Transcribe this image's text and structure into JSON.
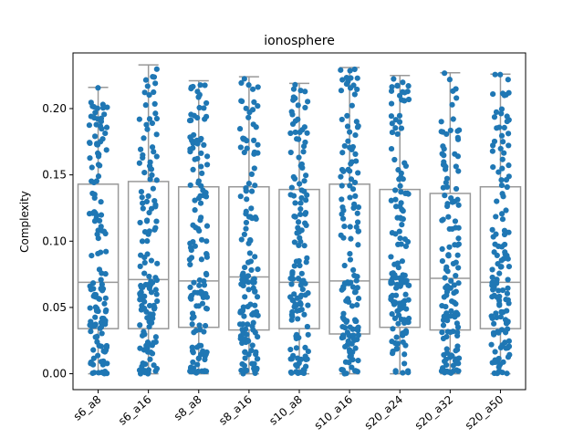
{
  "chart_data": {
    "type": "box",
    "title": "ionosphere",
    "xlabel": "",
    "ylabel": "Complexity",
    "ylim": [
      -0.012,
      0.242
    ],
    "yticks": [
      "0.00",
      "0.05",
      "0.10",
      "0.15",
      "0.20"
    ],
    "grid": false,
    "overlay": "strip",
    "point_color": "#1f77b4",
    "box_edge_color": "#999999",
    "categories": [
      "s6_a8",
      "s6_a16",
      "s8_a8",
      "s8_a16",
      "s10_a8",
      "s10_a16",
      "s20_a24",
      "s20_a32",
      "s20_a50"
    ],
    "boxes": [
      {
        "whislo": 0.0,
        "q1": 0.034,
        "med": 0.069,
        "q3": 0.143,
        "whishi": 0.216
      },
      {
        "whislo": 0.0,
        "q1": 0.034,
        "med": 0.071,
        "q3": 0.145,
        "whishi": 0.233
      },
      {
        "whislo": 0.0,
        "q1": 0.035,
        "med": 0.07,
        "q3": 0.141,
        "whishi": 0.221
      },
      {
        "whislo": 0.0,
        "q1": 0.033,
        "med": 0.073,
        "q3": 0.141,
        "whishi": 0.224
      },
      {
        "whislo": 0.0,
        "q1": 0.034,
        "med": 0.069,
        "q3": 0.139,
        "whishi": 0.219
      },
      {
        "whislo": 0.0,
        "q1": 0.03,
        "med": 0.07,
        "q3": 0.143,
        "whishi": 0.231
      },
      {
        "whislo": 0.0,
        "q1": 0.035,
        "med": 0.071,
        "q3": 0.139,
        "whishi": 0.225
      },
      {
        "whislo": 0.0,
        "q1": 0.033,
        "med": 0.072,
        "q3": 0.136,
        "whishi": 0.227
      },
      {
        "whislo": 0.0,
        "q1": 0.034,
        "med": 0.069,
        "q3": 0.141,
        "whishi": 0.226
      }
    ],
    "points_per_category": 140
  }
}
